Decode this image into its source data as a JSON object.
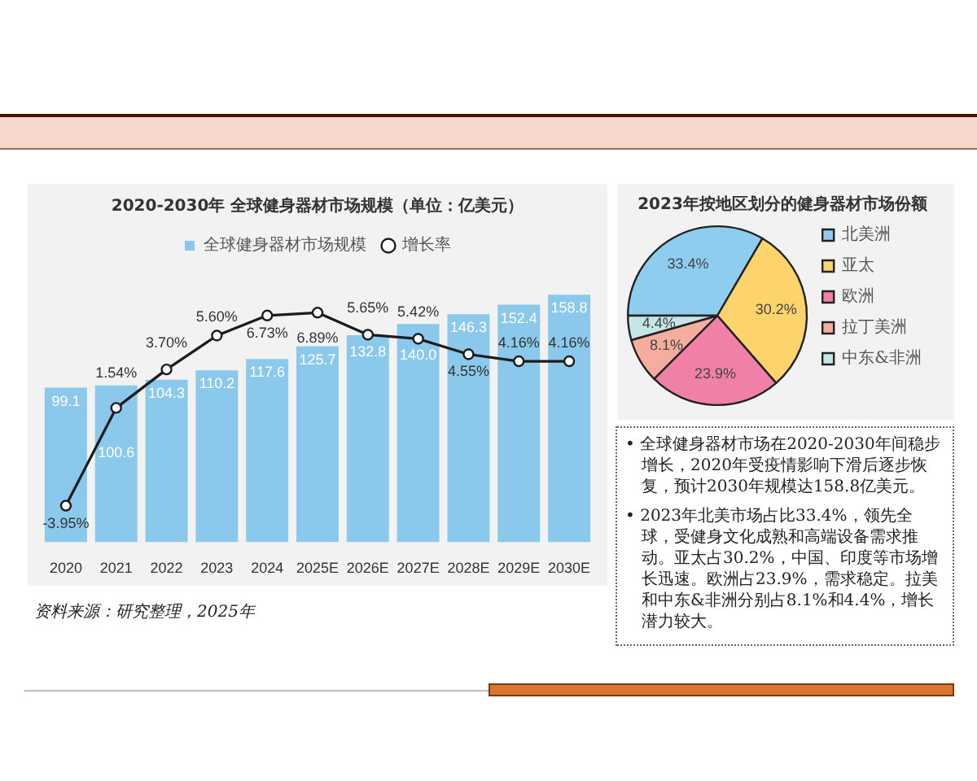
{
  "chart_data": [
    {
      "type": "bar",
      "title": "2020-2030年 全球健身器材市场规模（单位：亿美元）",
      "categories": [
        "2020",
        "2021",
        "2022",
        "2023",
        "2024",
        "2025E",
        "2026E",
        "2027E",
        "2028E",
        "2029E",
        "2030E"
      ],
      "series": [
        {
          "name": "全球健身器材市场规模",
          "type": "bar",
          "color": "#8ac8ec",
          "values": [
            99.1,
            100.6,
            104.3,
            110.2,
            117.6,
            125.7,
            132.8,
            140.0,
            146.3,
            152.4,
            158.8
          ],
          "value_labels": [
            "99.1",
            "100.6",
            "104.3",
            "110.2",
            "117.6",
            "125.7",
            "132.8",
            "140.0",
            "146.3",
            "152.4",
            "158.8"
          ]
        },
        {
          "name": "增长率",
          "type": "line",
          "axis": "y2",
          "color": "#1b1b1b",
          "values": [
            -3.95,
            1.54,
            3.7,
            5.6,
            6.73,
            6.89,
            5.65,
            5.42,
            4.55,
            4.16,
            4.16
          ],
          "value_labels": [
            "-3.95%",
            "1.54%",
            "3.70%",
            "5.60%",
            "6.73%",
            "6.89%",
            "5.65%",
            "5.42%",
            "4.55%",
            "4.16%",
            "4.16%"
          ]
        }
      ],
      "tick_labels": "x",
      "legend": "top",
      "marker": "circle",
      "line_style": "solid",
      "annotations": [
        "资料来源：研究整理，2025年"
      ]
    },
    {
      "type": "pie",
      "title": "2023年按地区划分的健身器材市场份额",
      "categories": [
        "北美洲",
        "亚太",
        "欧洲",
        "拉丁美洲",
        "中东&非洲"
      ],
      "values": [
        33.4,
        30.2,
        23.9,
        8.1,
        4.4
      ],
      "colors": [
        "#8fcdf0",
        "#fdd46c",
        "#f080a8",
        "#f5ae9e",
        "#c4e7e5"
      ],
      "value_labels": [
        "33.4%",
        "30.2%",
        "23.9%",
        "8.1%",
        "4.4%"
      ],
      "legend": "right"
    },
    {
      "type": "other",
      "annotations": [
        "• 全球健身器材市场在2020-2030年间稳步增长，2020年受疫情影响下滑后逐步恢复，预计2030年规模达158.8亿美元。",
        "• 2023年北美市场占比33.4%，领先全球，受健身文化成熟和高端设备需求推动。亚太占30.2%，中国、印度等市场增长迅速。欧洲占23.9%，需求稳定。拉美和中东&非洲分别占8.1%和4.4%，增长潜力较大。"
      ]
    }
  ]
}
